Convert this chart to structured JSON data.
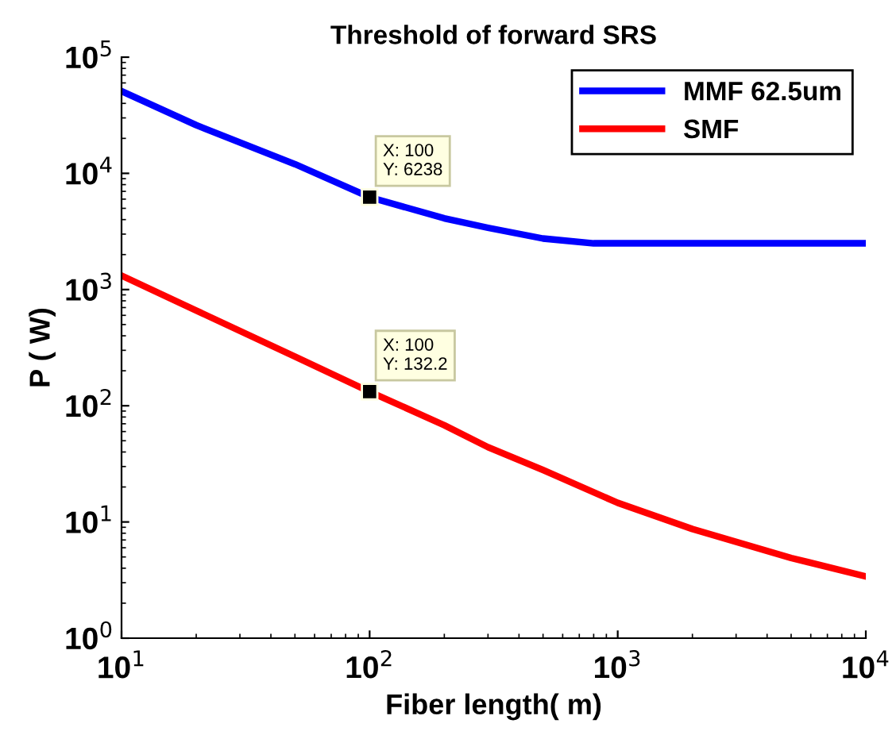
{
  "chart_data": {
    "type": "line",
    "title": "Threshold of forward SRS",
    "xlabel": "Fiber length( m)",
    "ylabel": "P ( W)",
    "log": "xy",
    "grid": false,
    "legend": "top right",
    "marker": "none",
    "line_style": "solid",
    "xlim": [
      10,
      10000
    ],
    "ylim": [
      1,
      100000
    ],
    "xticks": [
      {
        "value": 10,
        "label": "10$^{1}$"
      },
      {
        "value": 100,
        "label": "10$^{2}$"
      },
      {
        "value": 1000,
        "label": "10$^{3}$"
      },
      {
        "value": 10000,
        "label": "10$^{4}$"
      }
    ],
    "yticks": [
      {
        "value": 1,
        "label": "10$^{0}$"
      },
      {
        "value": 10,
        "label": "10$^{1}$"
      },
      {
        "value": 100,
        "label": "10$^{2}$"
      },
      {
        "value": 1000,
        "label": "10$^{3}$"
      },
      {
        "value": 10000,
        "label": "10$^{4}$"
      },
      {
        "value": 100000,
        "label": "10$^{5}$"
      }
    ],
    "series": [
      {
        "name": "MMF 62.5um",
        "color": "#0000ff",
        "x": [
          10,
          20,
          50,
          100,
          200,
          300,
          500,
          800,
          1000,
          2000,
          5000,
          10000
        ],
        "values": [
          51000,
          26000,
          12000,
          6238,
          4100,
          3400,
          2750,
          2500,
          2500,
          2500,
          2500,
          2500
        ]
      },
      {
        "name": "SMF",
        "color": "#ff0000",
        "x": [
          10,
          20,
          50,
          100,
          200,
          300,
          500,
          1000,
          2000,
          5000,
          10000
        ],
        "values": [
          1320,
          660,
          265,
          132.2,
          68,
          44,
          28,
          14.6,
          8.7,
          4.9,
          3.4
        ]
      }
    ],
    "annotations": [
      {
        "text": "X: 100\nY: 6238",
        "x": 100,
        "y": 6238
      },
      {
        "text": "X: 100\nY: 132.2",
        "x": 100,
        "y": 132.2
      }
    ]
  }
}
